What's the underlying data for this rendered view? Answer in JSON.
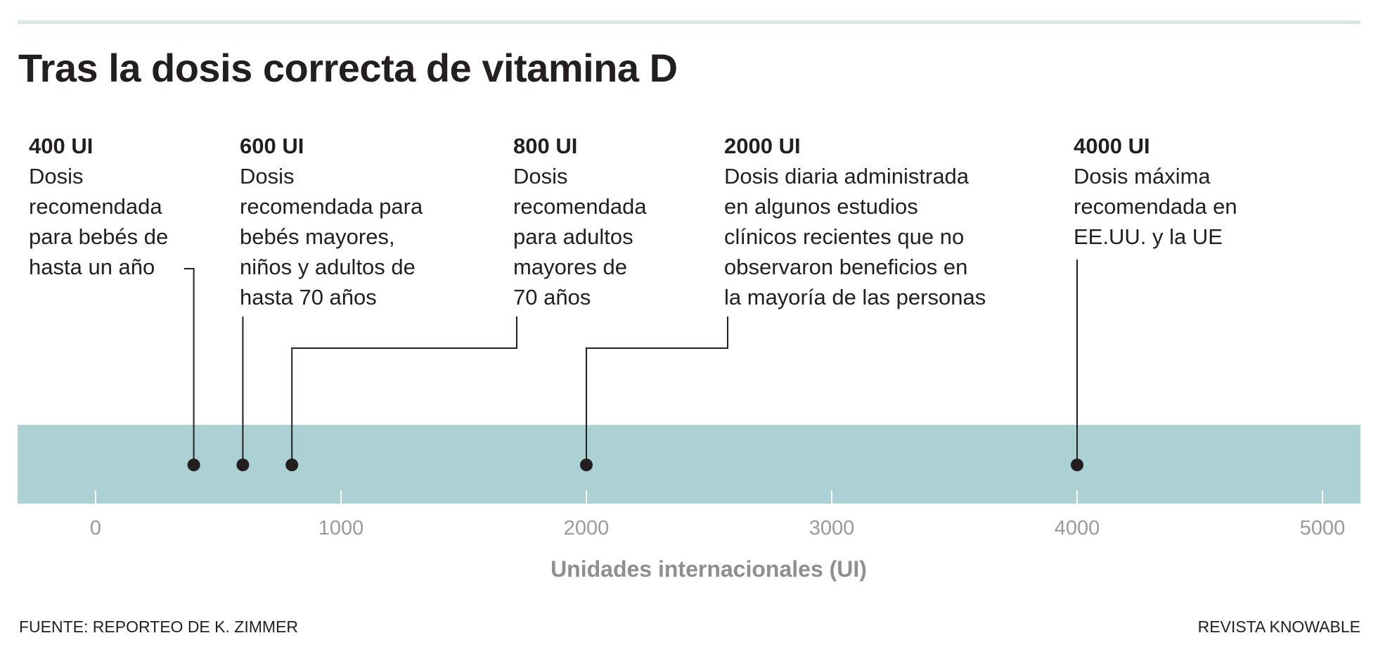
{
  "chart_data": {
    "type": "scatter",
    "title": "Tras la dosis correcta de vitamina D",
    "xlabel": "Unidades internacionales (UI)",
    "xlim": [
      -320,
      5160
    ],
    "xticks": [
      0,
      1000,
      2000,
      3000,
      4000,
      5000
    ],
    "tick_labels": [
      "0",
      "1000",
      "2000",
      "3000",
      "4000",
      "5000"
    ],
    "grid": false,
    "colors": {
      "band": "#abd1d4",
      "point": "#231f20",
      "axis_text": "#9a9a9a",
      "top_rule": "#d3e7e7"
    },
    "points": [
      {
        "x": 400,
        "label": "400 UI",
        "description": [
          "Dosis",
          "recomendada",
          "para bebés de",
          "hasta un año"
        ]
      },
      {
        "x": 600,
        "label": "600 UI",
        "description": [
          "Dosis",
          "recomendada para",
          "bebés mayores,",
          "niños y adultos de",
          "hasta 70 años"
        ]
      },
      {
        "x": 800,
        "label": "800 UI",
        "description": [
          "Dosis",
          "recomendada",
          "para adultos",
          "mayores de",
          "70 años"
        ]
      },
      {
        "x": 2000,
        "label": "2000 UI",
        "description": [
          "Dosis diaria administrada",
          "en algunos estudios",
          "clínicos recientes que no",
          "observaron beneficios en",
          "la mayoría de las personas"
        ]
      },
      {
        "x": 4000,
        "label": "4000 UI",
        "description": [
          "Dosis máxima",
          "recomendada en",
          "EE.UU. y la UE"
        ]
      }
    ]
  },
  "footer": {
    "source": "FUENTE: REPORTEO DE K. ZIMMER",
    "credit": "REVISTA KNOWABLE"
  }
}
